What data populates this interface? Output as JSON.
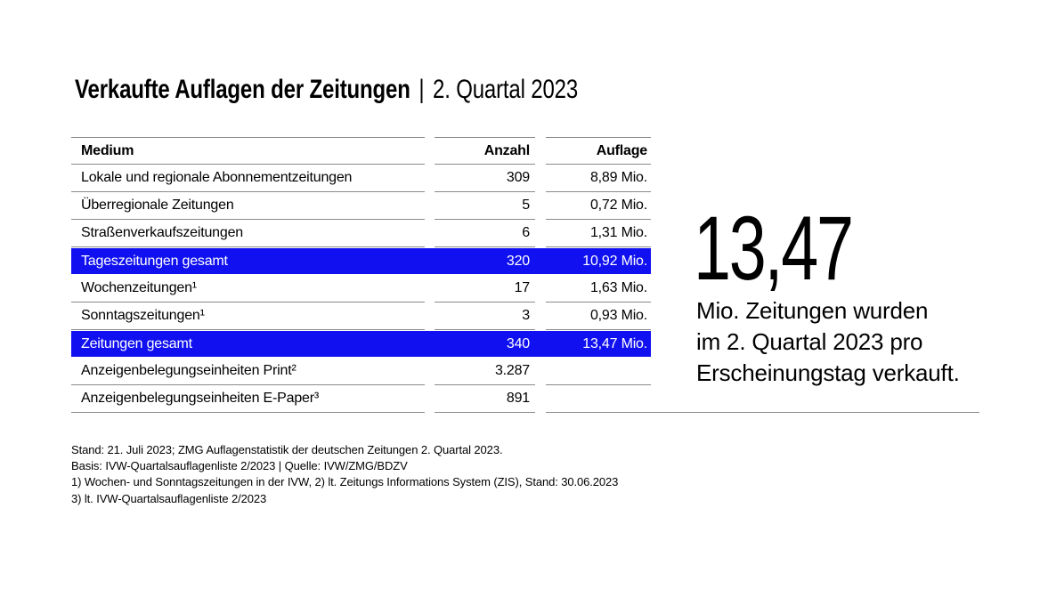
{
  "title": {
    "main": "Verkaufte Auflagen der Zeitungen",
    "separator": "|",
    "period": "2. Quartal 2023"
  },
  "table": {
    "headers": {
      "medium": "Medium",
      "anzahl": "Anzahl",
      "auflage": "Auflage"
    },
    "rows": [
      {
        "medium": "Lokale und regionale Abonnementzeitungen",
        "anzahl": "309",
        "auflage": "8,89 Mio.",
        "highlight": false
      },
      {
        "medium": "Überregionale Zeitungen",
        "anzahl": "5",
        "auflage": "0,72 Mio.",
        "highlight": false
      },
      {
        "medium": "Straßenverkaufszeitungen",
        "anzahl": "6",
        "auflage": "1,31 Mio.",
        "highlight": false
      },
      {
        "medium": "Tageszeitungen gesamt",
        "anzahl": "320",
        "auflage": "10,92 Mio.",
        "highlight": true
      },
      {
        "medium": "Wochenzeitungen¹",
        "anzahl": "17",
        "auflage": "1,63 Mio.",
        "highlight": false
      },
      {
        "medium": "Sonntagszeitungen¹",
        "anzahl": "3",
        "auflage": "0,93 Mio.",
        "highlight": false
      },
      {
        "medium": "Zeitungen gesamt",
        "anzahl": "340",
        "auflage": "13,47 Mio.",
        "highlight": true
      },
      {
        "medium": "Anzeigenbelegungseinheiten Print²",
        "anzahl": "3.287",
        "auflage": "",
        "highlight": false
      },
      {
        "medium": "Anzeigenbelegungseinheiten E-Paper³",
        "anzahl": "891",
        "auflage": "",
        "highlight": false
      }
    ]
  },
  "callout": {
    "big_number": "13,47",
    "line1": "Mio. Zeitungen wurden",
    "line2": "im 2. Quartal 2023 pro",
    "line3": "Erscheinungstag verkauft."
  },
  "footnotes": {
    "line1": "Stand: 21. Juli 2023; ZMG Auflagenstatistik der deutschen Zeitungen 2. Quartal 2023.",
    "line2": "Basis: IVW-Quartalsauflagenliste 2/2023 | Quelle: IVW/ZMG/BDZV",
    "line3": "1) Wochen- und Sonntagszeitungen in der IVW, 2) lt. Zeitungs Informations System (ZIS), Stand: 30.06.2023",
    "line4": "3) lt. IVW-Quartalsauflagenliste 2/2023"
  },
  "colors": {
    "highlight_blue": "#1010f0",
    "rule_gray": "#8a8a8a",
    "text": "#000000"
  },
  "chart_data": {
    "type": "table",
    "title": "Verkaufte Auflagen der Zeitungen | 2. Quartal 2023",
    "columns": [
      "Medium",
      "Anzahl",
      "Auflage (Mio.)"
    ],
    "rows": [
      [
        "Lokale und regionale Abonnementzeitungen",
        309,
        8.89
      ],
      [
        "Überregionale Zeitungen",
        5,
        0.72
      ],
      [
        "Straßenverkaufszeitungen",
        6,
        1.31
      ],
      [
        "Tageszeitungen gesamt",
        320,
        10.92
      ],
      [
        "Wochenzeitungen",
        17,
        1.63
      ],
      [
        "Sonntagszeitungen",
        3,
        0.93
      ],
      [
        "Zeitungen gesamt",
        340,
        13.47
      ],
      [
        "Anzeigenbelegungseinheiten Print",
        3287,
        null
      ],
      [
        "Anzeigenbelegungseinheiten E-Paper",
        891,
        null
      ]
    ],
    "highlighted_rows": [
      "Tageszeitungen gesamt",
      "Zeitungen gesamt"
    ],
    "callout_value": 13.47,
    "callout_unit": "Mio."
  }
}
